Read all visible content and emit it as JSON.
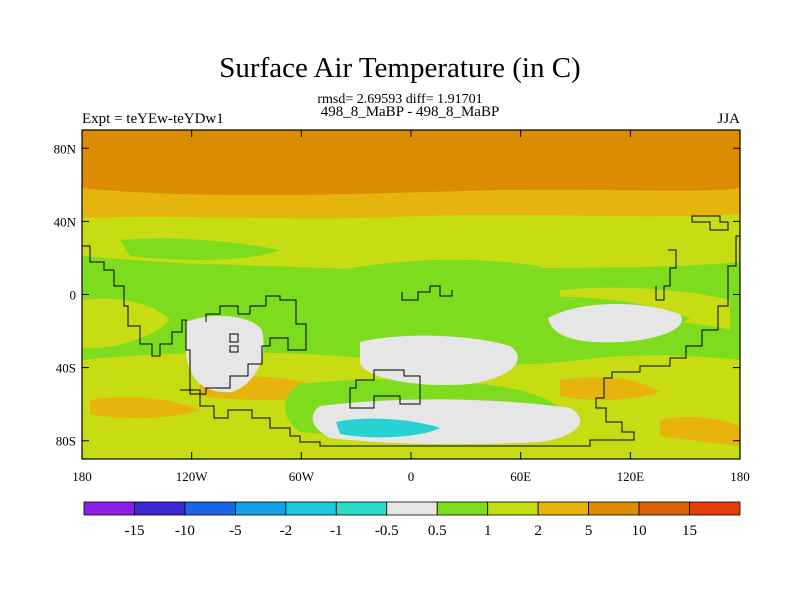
{
  "header": {
    "title": "Surface Air Temperature (in C)",
    "stats": "rmsd= 2.69593 diff= 1.91701",
    "experiment": "Expt = teYEw-teYDw1",
    "cases": "498_8_MaBP - 498_8_MaBP",
    "season": "JJA"
  },
  "map": {
    "lat_ticks": [
      {
        "label": "80N",
        "value": 80
      },
      {
        "label": "40N",
        "value": 40
      },
      {
        "label": "0",
        "value": 0
      },
      {
        "label": "40S",
        "value": -40
      },
      {
        "label": "80S",
        "value": -80
      }
    ],
    "lon_ticks": [
      {
        "label": "180",
        "value": -180
      },
      {
        "label": "120W",
        "value": -120
      },
      {
        "label": "60W",
        "value": -60
      },
      {
        "label": "0",
        "value": 0
      },
      {
        "label": "60E",
        "value": 60
      },
      {
        "label": "120E",
        "value": 120
      },
      {
        "label": "180",
        "value": 180
      }
    ],
    "lat_range": [
      -90,
      90
    ],
    "lon_range": [
      -180,
      180
    ],
    "colors": {
      "lt_neg05": "#e6e6e6",
      "c05_1": "#7ddc1e",
      "c1_2": "#c8dc14",
      "c2_5": "#e6b40a",
      "c5_10": "#dc8c00",
      "c10_15": "#dc6400",
      "cyan": "#28d2d2"
    }
  },
  "colorbar": {
    "boxes": [
      "#8c1ee6",
      "#3c28d2",
      "#1e64e6",
      "#14a0e6",
      "#1ec8dc",
      "#28dcc8",
      "#e6e6e6",
      "#7ddc1e",
      "#c8dc14",
      "#e6b40a",
      "#dc8c00",
      "#dc6400",
      "#e63c0a"
    ],
    "labels": [
      "-15",
      "-10",
      "-5",
      "-2",
      "-1",
      "-0.5",
      "0.5",
      "1",
      "2",
      "5",
      "10",
      "15"
    ]
  }
}
